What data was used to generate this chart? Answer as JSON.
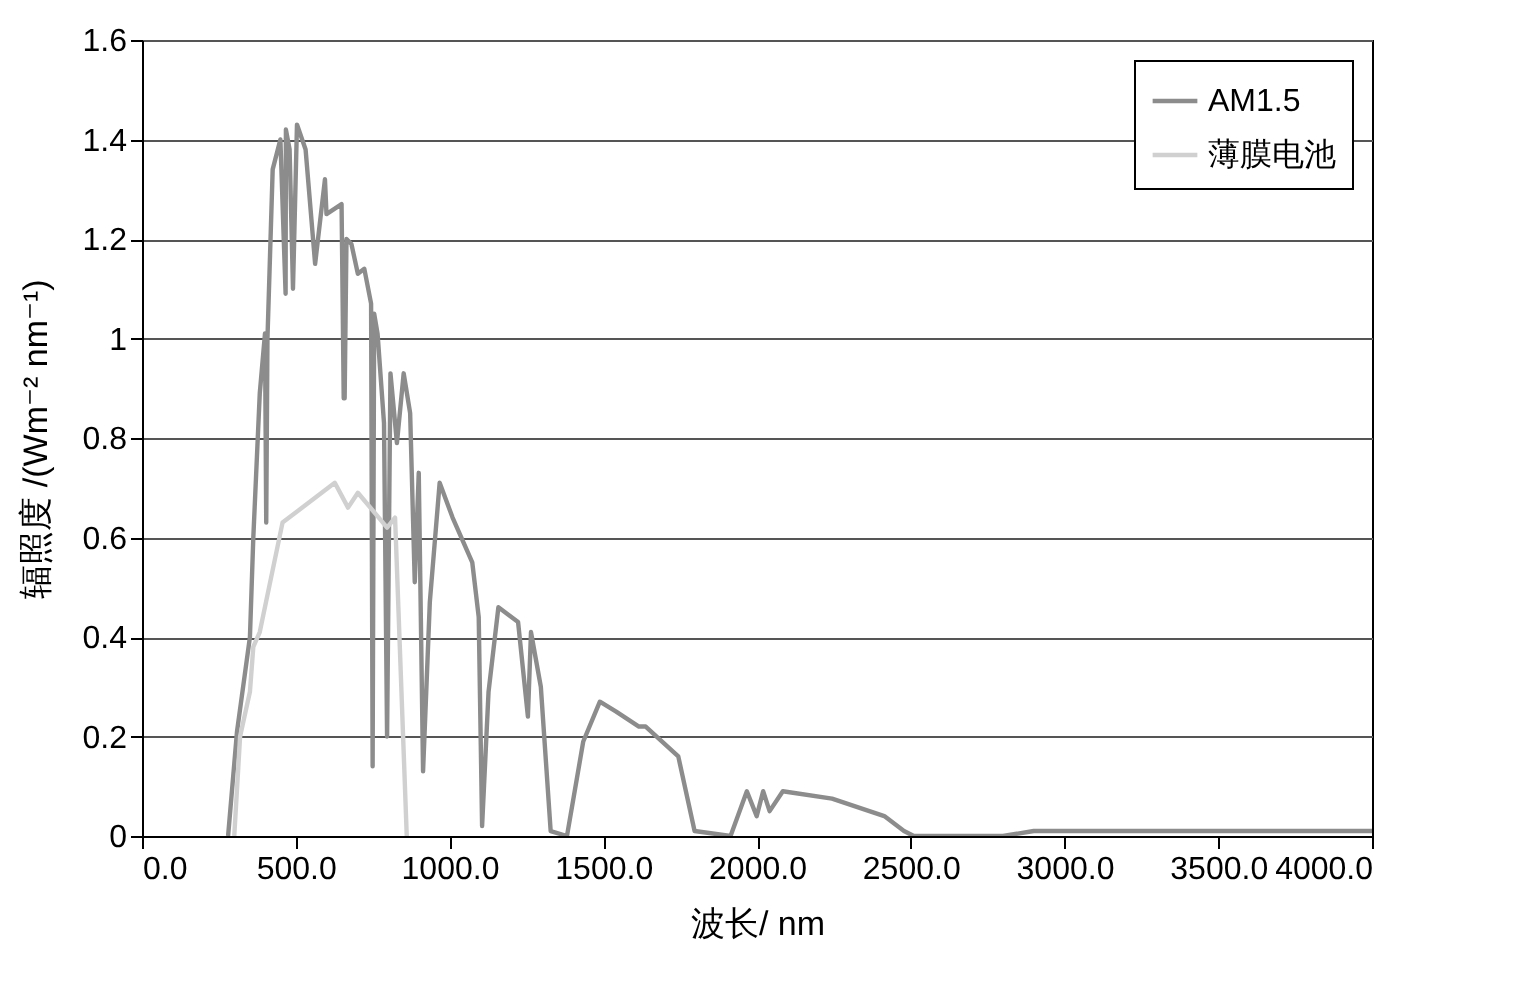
{
  "chart_data": {
    "type": "line",
    "xlabel": "波长/ nm",
    "ylabel": "辐照度 /(Wm⁻² nm⁻¹)",
    "xlim": [
      0,
      4000
    ],
    "ylim": [
      0,
      1.6
    ],
    "xticks": [
      {
        "value": 0,
        "label": "0.0"
      },
      {
        "value": 500,
        "label": "500.0"
      },
      {
        "value": 1000,
        "label": "1000.0"
      },
      {
        "value": 1500,
        "label": "1500.0"
      },
      {
        "value": 2000,
        "label": "2000.0"
      },
      {
        "value": 2500,
        "label": "2500.0"
      },
      {
        "value": 3000,
        "label": "3000.0"
      },
      {
        "value": 3500,
        "label": "3500.0"
      },
      {
        "value": 4000,
        "label": "4000.0"
      }
    ],
    "yticks": [
      0,
      0.2,
      0.4,
      0.6,
      0.8,
      1,
      1.2,
      1.4,
      1.6
    ],
    "grid": "y",
    "legend": "top right",
    "marker": "none",
    "line_style": "solid",
    "series": [
      {
        "name": "AM1.5",
        "color": "#8c8c8c",
        "x": [
          280,
          309,
          351,
          362,
          383,
          400,
          404,
          408,
          425,
          450,
          467,
          468,
          480,
          491,
          504,
          532,
          563,
          595,
          600,
          649,
          656,
          659,
          665,
          681,
          702,
          723,
          745,
          750,
          755,
          766,
          787,
          797,
          808,
          829,
          851,
          872,
          887,
          900,
          914,
          936,
          968,
          1010,
          1074,
          1095,
          1106,
          1127,
          1159,
          1223,
          1255,
          1265,
          1297,
          1329,
          1382,
          1435,
          1489,
          1542,
          1616,
          1638,
          1744,
          1797,
          1914,
          1967,
          1999,
          2020,
          2041,
          2084,
          2244,
          2414,
          2478,
          2510,
          2800,
          2900,
          3200,
          3500,
          3800,
          4000
        ],
        "values": [
          0,
          0.21,
          0.4,
          0.6,
          0.89,
          1.01,
          0.63,
          1.0,
          1.34,
          1.4,
          1.09,
          1.42,
          1.38,
          1.1,
          1.43,
          1.38,
          1.15,
          1.32,
          1.25,
          1.27,
          0.88,
          0.88,
          1.2,
          1.19,
          1.13,
          1.14,
          1.07,
          0.14,
          1.05,
          1.01,
          0.83,
          0.2,
          0.93,
          0.79,
          0.93,
          0.85,
          0.51,
          0.73,
          0.13,
          0.47,
          0.71,
          0.64,
          0.55,
          0.44,
          0.02,
          0.29,
          0.46,
          0.43,
          0.24,
          0.41,
          0.3,
          0.01,
          0,
          0.19,
          0.27,
          0.25,
          0.22,
          0.22,
          0.16,
          0.01,
          0,
          0.09,
          0.04,
          0.09,
          0.05,
          0.09,
          0.075,
          0.04,
          0.01,
          0,
          0,
          0.01,
          0.01,
          0.01,
          0.01,
          0.01
        ]
      },
      {
        "name": "薄膜电池",
        "color": "#d0d0d0",
        "x": [
          300,
          319,
          351,
          362,
          383,
          457,
          627,
          670,
          702,
          797,
          823,
          861
        ],
        "values": [
          0,
          0.2,
          0.29,
          0.38,
          0.41,
          0.63,
          0.71,
          0.66,
          0.69,
          0.62,
          0.64,
          0
        ]
      }
    ]
  }
}
